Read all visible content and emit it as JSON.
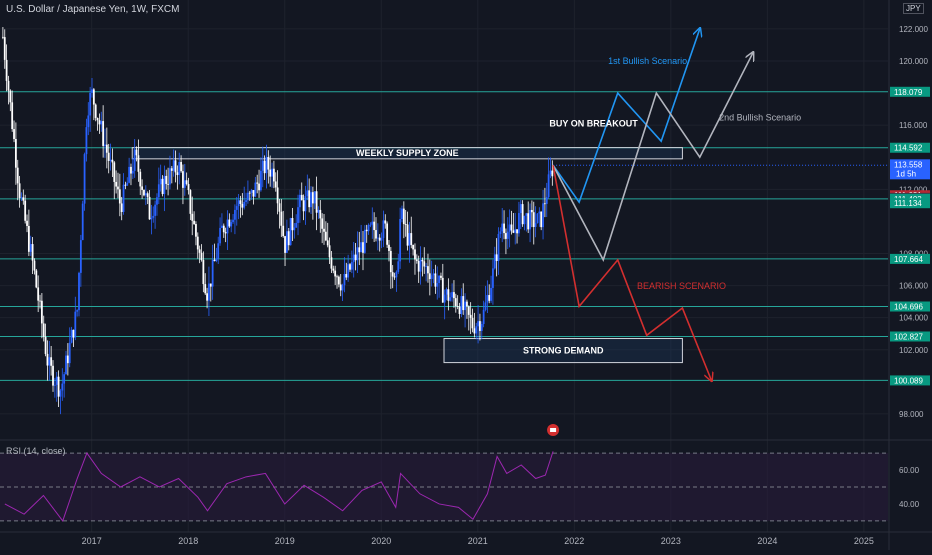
{
  "header": {
    "symbol_title": "U.S. Dollar / Japanese Yen, 1W, FXCM",
    "currency": "JPY"
  },
  "rsi": {
    "title": "RSI (14, close)"
  },
  "colors": {
    "background": "#131722",
    "candle_up": "#2962ff",
    "candle_down": "#ffffff",
    "level_line": "#26a69a",
    "bullish_1": "#2196f3",
    "bullish_2": "#b2b5be",
    "bearish": "#d32f2f",
    "rsi_line": "#9c27b0",
    "zone_fill": "#1e3a5f"
  },
  "chart_data": [
    {
      "type": "candlestick",
      "title": "U.S. Dollar / Japanese Yen, 1W, FXCM",
      "x_axis": {
        "type": "time",
        "ticks": [
          "2017",
          "2018",
          "2019",
          "2020",
          "2021",
          "2022",
          "2023",
          "2024",
          "2025"
        ],
        "range": [
          2016.05,
          2025.25
        ]
      },
      "y_axis": {
        "position": "right",
        "range": [
          96.5,
          123.8
        ],
        "ticks": [
          98.0,
          102.0,
          104.0,
          106.0,
          108.0,
          112.0,
          116.0,
          120.0,
          122.0
        ]
      },
      "price_path": [
        [
          2016.08,
          121.5
        ],
        [
          2016.25,
          112.0
        ],
        [
          2016.4,
          107.0
        ],
        [
          2016.55,
          101.0
        ],
        [
          2016.68,
          99.5
        ],
        [
          2016.85,
          104.5
        ],
        [
          2016.95,
          117.0
        ],
        [
          2017.0,
          118.0
        ],
        [
          2017.15,
          114.5
        ],
        [
          2017.3,
          111.0
        ],
        [
          2017.45,
          114.0
        ],
        [
          2017.6,
          110.5
        ],
        [
          2017.75,
          112.5
        ],
        [
          2017.9,
          113.5
        ],
        [
          2018.0,
          111.5
        ],
        [
          2018.1,
          108.5
        ],
        [
          2018.2,
          105.5
        ],
        [
          2018.35,
          109.5
        ],
        [
          2018.5,
          111.0
        ],
        [
          2018.65,
          111.5
        ],
        [
          2018.8,
          113.5
        ],
        [
          2018.9,
          113.0
        ],
        [
          2019.0,
          108.5
        ],
        [
          2019.15,
          111.0
        ],
        [
          2019.3,
          111.5
        ],
        [
          2019.45,
          108.0
        ],
        [
          2019.6,
          106.0
        ],
        [
          2019.75,
          108.0
        ],
        [
          2019.9,
          109.5
        ],
        [
          2020.05,
          109.5
        ],
        [
          2020.15,
          105.5
        ],
        [
          2020.2,
          110.5
        ],
        [
          2020.35,
          107.5
        ],
        [
          2020.5,
          107.0
        ],
        [
          2020.65,
          105.5
        ],
        [
          2020.8,
          105.0
        ],
        [
          2020.95,
          103.5
        ],
        [
          2021.05,
          104.0
        ],
        [
          2021.15,
          106.5
        ],
        [
          2021.25,
          110.0
        ],
        [
          2021.35,
          109.0
        ],
        [
          2021.45,
          110.5
        ],
        [
          2021.55,
          110.0
        ],
        [
          2021.65,
          110.0
        ],
        [
          2021.72,
          112.0
        ],
        [
          2021.78,
          113.5
        ]
      ],
      "price_labels": [
        {
          "value": 118.079,
          "text": "118.079",
          "color": "#089981"
        },
        {
          "value": 114.592,
          "text": "114.592",
          "color": "#089981"
        },
        {
          "value": 113.558,
          "text": "113.558",
          "sub": "1d 5h",
          "color": "#2962ff"
        },
        {
          "value": 111.631,
          "text": "111.631",
          "color": "#b22833"
        },
        {
          "value": 111.467,
          "text": "111.467",
          "color": "#3a3e4a"
        },
        {
          "value": 111.403,
          "text": "111.403",
          "color": "#089981"
        },
        {
          "value": 111.134,
          "text": "111.134",
          "color": "#089981"
        },
        {
          "value": 107.664,
          "text": "107.664",
          "color": "#089981"
        },
        {
          "value": 104.696,
          "text": "104.696",
          "color": "#089981"
        },
        {
          "value": 102.827,
          "text": "102.827",
          "color": "#089981"
        },
        {
          "value": 100.089,
          "text": "100.089",
          "color": "#089981"
        }
      ],
      "horizontal_levels": [
        118.079,
        114.592,
        111.403,
        107.664,
        104.696,
        102.827,
        100.089
      ],
      "zones": [
        {
          "label": "WEEKLY SUPPLY ZONE",
          "x": [
            2017.42,
            2023.12
          ],
          "y": [
            113.9,
            114.6
          ]
        },
        {
          "label": "STRONG DEMAND",
          "x": [
            2020.65,
            2023.12
          ],
          "y": [
            101.2,
            102.7
          ]
        }
      ],
      "scenarios": [
        {
          "name": "1st Bullish Scenario",
          "color": "#2196f3",
          "points": [
            [
              2021.78,
              113.5
            ],
            [
              2022.05,
              111.2
            ],
            [
              2022.45,
              118.0
            ],
            [
              2022.9,
              115.0
            ],
            [
              2023.3,
              122.0
            ]
          ]
        },
        {
          "name": "2nd Bullish Scenario",
          "color": "#b2b5be",
          "points": [
            [
              2021.78,
              113.5
            ],
            [
              2022.3,
              107.6
            ],
            [
              2022.85,
              118.0
            ],
            [
              2023.3,
              114.0
            ],
            [
              2023.85,
              120.5
            ]
          ]
        },
        {
          "name": "BEARISH SCENARIO",
          "color": "#d32f2f",
          "points": [
            [
              2021.78,
              113.5
            ],
            [
              2022.05,
              104.7
            ],
            [
              2022.45,
              107.6
            ],
            [
              2022.75,
              102.9
            ],
            [
              2023.12,
              104.6
            ],
            [
              2023.42,
              100.1
            ]
          ]
        }
      ],
      "annotations": [
        {
          "text": "BUY ON BREAKOUT",
          "x": 2022.2,
          "y": 115.9,
          "color": "#ffffff"
        }
      ]
    },
    {
      "type": "line",
      "title": "RSI (14, close)",
      "y_axis": {
        "range": [
          27,
          73
        ],
        "ticks": [
          40.0,
          60.0
        ],
        "bands": [
          70,
          50,
          30
        ]
      },
      "points": [
        [
          2016.1,
          40
        ],
        [
          2016.3,
          34
        ],
        [
          2016.5,
          45
        ],
        [
          2016.7,
          30
        ],
        [
          2016.85,
          55
        ],
        [
          2016.95,
          70
        ],
        [
          2017.1,
          58
        ],
        [
          2017.3,
          50
        ],
        [
          2017.5,
          56
        ],
        [
          2017.7,
          50
        ],
        [
          2017.9,
          55
        ],
        [
          2018.1,
          44
        ],
        [
          2018.2,
          36
        ],
        [
          2018.4,
          52
        ],
        [
          2018.6,
          56
        ],
        [
          2018.8,
          58
        ],
        [
          2019.0,
          40
        ],
        [
          2019.2,
          51
        ],
        [
          2019.4,
          44
        ],
        [
          2019.6,
          36
        ],
        [
          2019.8,
          48
        ],
        [
          2020.0,
          53
        ],
        [
          2020.15,
          38
        ],
        [
          2020.2,
          58
        ],
        [
          2020.4,
          46
        ],
        [
          2020.6,
          40
        ],
        [
          2020.8,
          38
        ],
        [
          2020.95,
          31
        ],
        [
          2021.1,
          46
        ],
        [
          2021.2,
          68
        ],
        [
          2021.3,
          58
        ],
        [
          2021.45,
          63
        ],
        [
          2021.6,
          55
        ],
        [
          2021.7,
          57
        ],
        [
          2021.78,
          71
        ]
      ]
    }
  ]
}
